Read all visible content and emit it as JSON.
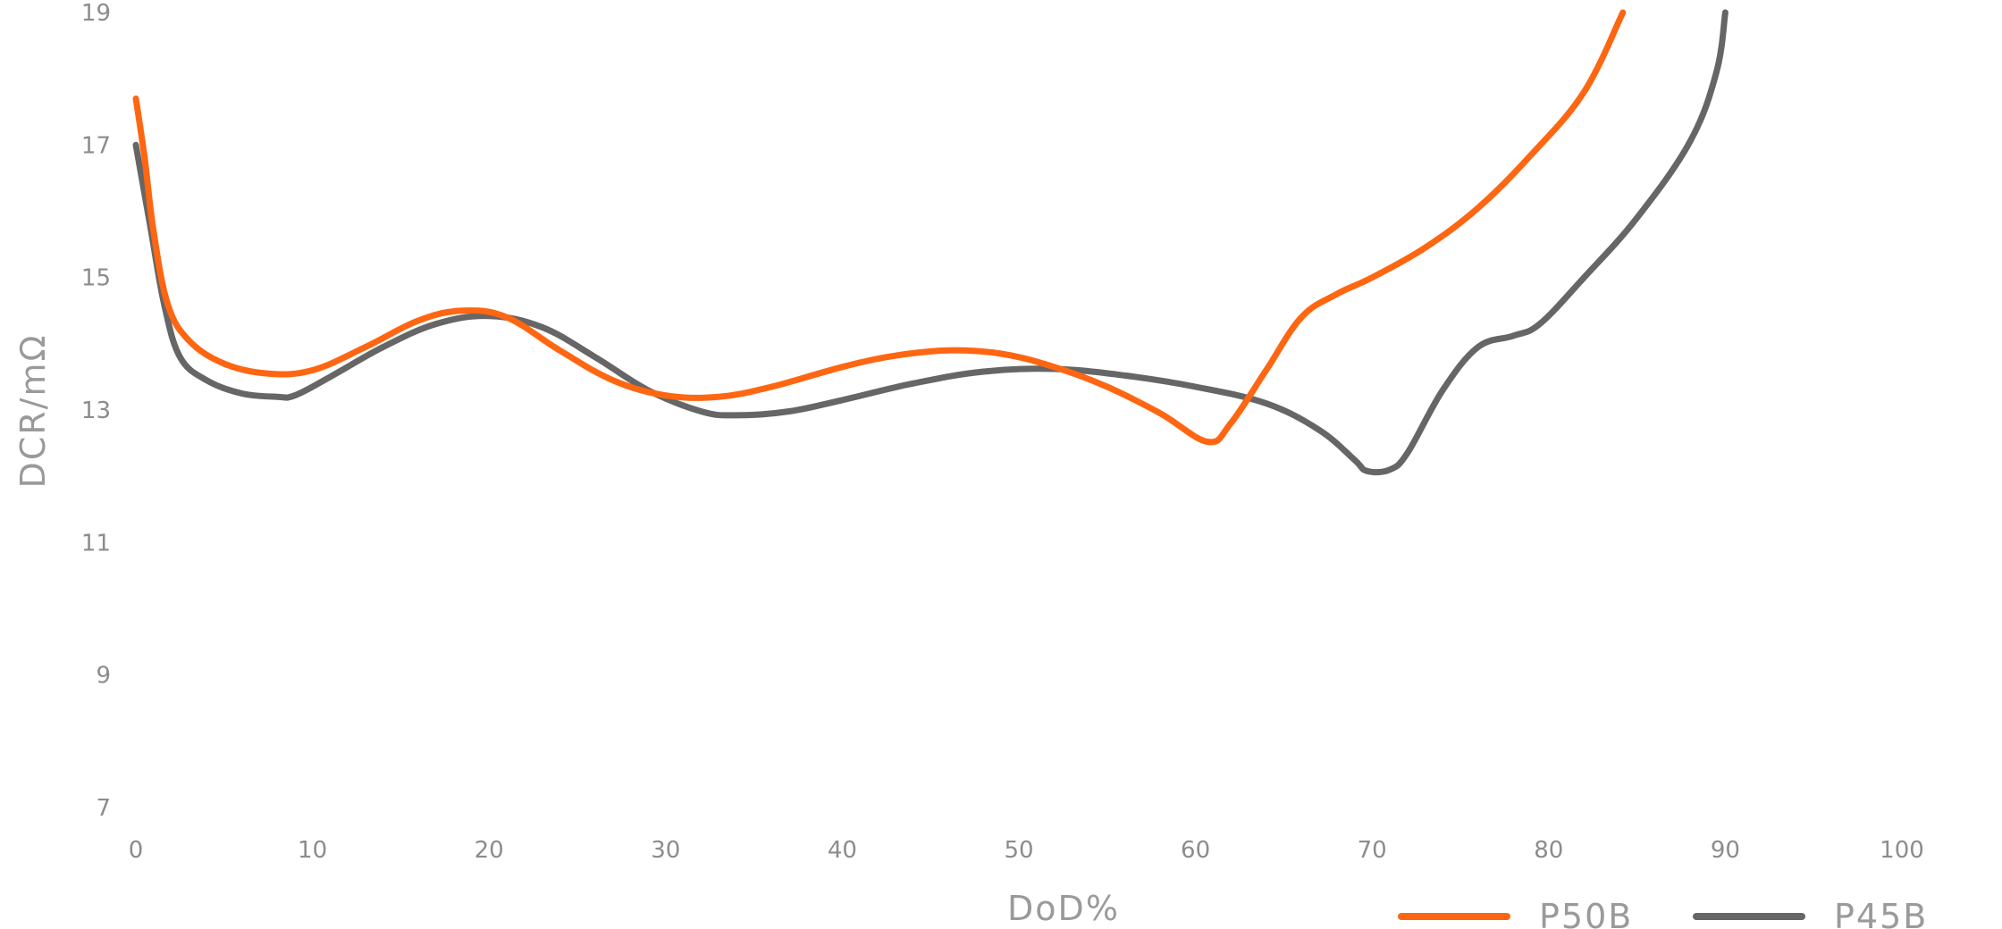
{
  "chart_data": {
    "type": "line",
    "title": "",
    "xlabel": "DoD%",
    "ylabel": "DCR/mΩ",
    "xlim": [
      0,
      100
    ],
    "ylim": [
      7,
      19
    ],
    "xticks": [
      0,
      10,
      20,
      30,
      40,
      50,
      60,
      70,
      80,
      90,
      100
    ],
    "yticks": [
      7,
      9,
      11,
      13,
      15,
      17,
      19
    ],
    "xtick_labels": [
      "0",
      "10",
      "20",
      "30",
      "40",
      "50",
      "60",
      "70",
      "80",
      "90",
      "100"
    ],
    "ytick_labels": [
      "7",
      "9",
      "11",
      "13",
      "15",
      "17",
      "19"
    ],
    "grid": false,
    "legend_position": "bottom-right",
    "series": [
      {
        "name": "P50B",
        "color": "#ff6611",
        "x": [
          0,
          0.5,
          1,
          1.8,
          3,
          5,
          7.5,
          10,
          13,
          16,
          18.5,
          21,
          24,
          27,
          30,
          33,
          36,
          40,
          43,
          46,
          49,
          52,
          55,
          58,
          60.7,
          62,
          64,
          66,
          68,
          70,
          73,
          76,
          79,
          82,
          84.2
        ],
        "y": [
          17.7,
          16.8,
          15.7,
          14.6,
          14.05,
          13.7,
          13.55,
          13.6,
          13.95,
          14.35,
          14.5,
          14.4,
          13.9,
          13.45,
          13.22,
          13.2,
          13.35,
          13.65,
          13.82,
          13.9,
          13.85,
          13.65,
          13.35,
          12.95,
          12.52,
          12.8,
          13.6,
          14.4,
          14.75,
          15.0,
          15.45,
          16.05,
          16.85,
          17.8,
          19.0
        ]
      },
      {
        "name": "P45B",
        "color": "#666666",
        "x": [
          0,
          0.8,
          1.6,
          2.5,
          4,
          6,
          8,
          9,
          11,
          14,
          17,
          20,
          23,
          26,
          29,
          32,
          34,
          37,
          40,
          44,
          48,
          52,
          56,
          60,
          64,
          67,
          69,
          69.7,
          71,
          72,
          74,
          76,
          78,
          79.5,
          82,
          85,
          88,
          89.5,
          90
        ],
        "y": [
          17.0,
          15.8,
          14.6,
          13.8,
          13.45,
          13.25,
          13.2,
          13.22,
          13.5,
          13.95,
          14.3,
          14.42,
          14.25,
          13.8,
          13.3,
          12.98,
          12.92,
          12.98,
          13.15,
          13.4,
          13.58,
          13.62,
          13.52,
          13.35,
          13.1,
          12.7,
          12.25,
          12.08,
          12.1,
          12.35,
          13.3,
          13.95,
          14.12,
          14.3,
          15.0,
          15.9,
          17.05,
          18.1,
          19.0
        ]
      }
    ]
  }
}
